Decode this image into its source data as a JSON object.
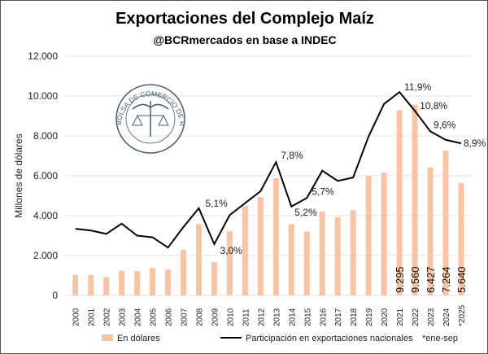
{
  "chart_data": {
    "type": "bar",
    "title": "Exportaciones del Complejo Maíz",
    "subtitle": "@BCRmercados en base a INDEC",
    "ylabel": "Millones de dólares",
    "ylim": [
      0,
      12000
    ],
    "y2lim": [
      0,
      14
    ],
    "yticks": [
      "0",
      "2.000",
      "4.000",
      "6.000",
      "8.000",
      "10.000",
      "12.000"
    ],
    "grid": true,
    "legend_position": "bottom",
    "categories": [
      "2000",
      "2001",
      "2002",
      "2003",
      "2004",
      "2005",
      "2006",
      "2007",
      "2008",
      "2009",
      "2010",
      "2011",
      "2012",
      "2013",
      "2014",
      "2015",
      "2016",
      "2017",
      "2018",
      "2019",
      "2020",
      "2021",
      "2022",
      "2023",
      "2024",
      "*2025"
    ],
    "series": [
      {
        "name": "En dólares",
        "type": "bar",
        "color": "#f8c4a6",
        "values": [
          1030,
          1020,
          925,
          1240,
          1220,
          1375,
          1290,
          2285,
          3580,
          1670,
          3210,
          4500,
          4935,
          5890,
          3580,
          3200,
          4200,
          3920,
          4280,
          6010,
          6150,
          9295,
          9560,
          6427,
          7264,
          5640
        ],
        "data_labels": {
          "21": "9.295",
          "22": "9.560",
          "23": "6.427",
          "24": "7.264",
          "25": "5.640"
        }
      },
      {
        "name": "Participación en exportaciones nacionales",
        "type": "line",
        "color": "#000000",
        "axis": "secondary",
        "values": [
          3.9,
          3.8,
          3.6,
          4.2,
          3.5,
          3.4,
          2.8,
          4.0,
          5.1,
          3.0,
          4.7,
          5.4,
          6.1,
          7.8,
          5.2,
          5.7,
          7.3,
          6.7,
          6.9,
          9.3,
          11.2,
          11.9,
          10.8,
          9.6,
          9.1,
          8.9
        ],
        "data_labels": {
          "8": "5,1%",
          "9": "3,0%",
          "13": "7,8%",
          "14": "5,2%",
          "15": "5,7%",
          "21": "11,9%",
          "22": "10,8%",
          "23": "9,6%",
          "25": "8,9%"
        }
      }
    ],
    "note": "*ene-sep",
    "logo_text": "BOLSA DE COMERCIO DE ROSARIO"
  }
}
